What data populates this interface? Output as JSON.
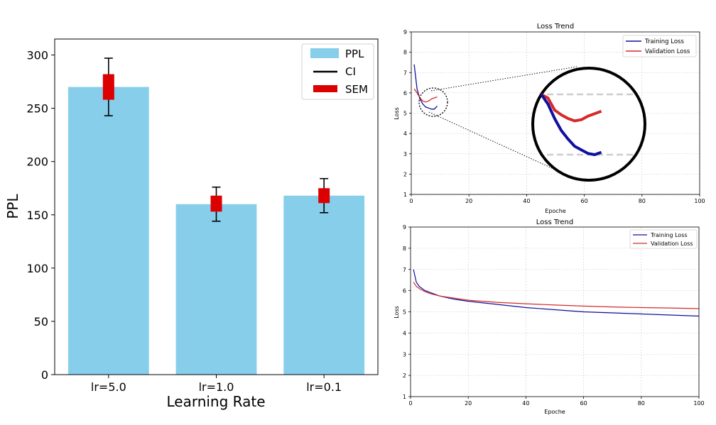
{
  "colors": {
    "ppl": "#87ceeb",
    "sem": "#dd0000",
    "ci": "#000000",
    "training": "#1010a0",
    "validation": "#d42a2a",
    "grid": "#c8c8c8",
    "dash": "#cccccc"
  },
  "chart_data": [
    {
      "type": "bar",
      "categories": [
        "lr=5.0",
        "lr=1.0",
        "lr=0.1"
      ],
      "series": [
        {
          "name": "PPL",
          "values": [
            270,
            160,
            168
          ]
        }
      ],
      "error_bars": {
        "CI": [
          [
            243,
            297
          ],
          [
            144,
            176
          ],
          [
            152,
            184
          ]
        ],
        "SEM": [
          [
            258,
            282
          ],
          [
            153,
            168
          ],
          [
            161,
            175
          ]
        ]
      },
      "legend": [
        "PPL",
        "CI",
        "SEM"
      ],
      "legend_position": "top-right",
      "xlabel": "Learning Rate",
      "ylabel": "PPL",
      "ylim": [
        0,
        315
      ],
      "yticks": [
        0,
        50,
        100,
        150,
        200,
        250,
        300
      ],
      "grid": false
    },
    {
      "type": "line",
      "title": "Loss Trend",
      "xlabel": "Epoche",
      "ylabel": "Loss",
      "xlim": [
        0,
        100
      ],
      "ylim": [
        1,
        9
      ],
      "xticks": [
        0,
        20,
        40,
        60,
        80,
        100
      ],
      "yticks": [
        1,
        2,
        3,
        4,
        5,
        6,
        7,
        8,
        9
      ],
      "grid": true,
      "legend_position": "top-right",
      "series": [
        {
          "name": "Training Loss",
          "x": [
            1,
            2,
            3,
            4,
            5,
            6,
            7,
            8,
            9
          ],
          "y": [
            7.4,
            6.2,
            5.7,
            5.45,
            5.3,
            5.25,
            5.2,
            5.2,
            5.35
          ]
        },
        {
          "name": "Validation Loss",
          "x": [
            1,
            2,
            3,
            4,
            5,
            6,
            7,
            8,
            9
          ],
          "y": [
            6.2,
            6.0,
            5.75,
            5.6,
            5.55,
            5.6,
            5.7,
            5.75,
            5.8
          ]
        }
      ],
      "zoom_inset": {
        "center": [
          6,
          5.5
        ],
        "training": [
          [
            1,
            6.0
          ],
          [
            2,
            5.6
          ],
          [
            3,
            5.0
          ],
          [
            4,
            4.5
          ],
          [
            5,
            4.15
          ],
          [
            6,
            3.85
          ],
          [
            7,
            3.7
          ],
          [
            8,
            3.55
          ],
          [
            9,
            3.5
          ],
          [
            10,
            3.6
          ]
        ],
        "validation": [
          [
            1,
            6.0
          ],
          [
            2,
            5.85
          ],
          [
            3,
            5.35
          ],
          [
            4,
            5.15
          ],
          [
            5,
            5.0
          ],
          [
            6,
            4.9
          ],
          [
            7,
            4.95
          ],
          [
            8,
            5.1
          ],
          [
            9,
            5.2
          ],
          [
            10,
            5.3
          ]
        ]
      }
    },
    {
      "type": "line",
      "title": "Loss Trend",
      "xlabel": "Epoche",
      "ylabel": "Loss",
      "xlim": [
        0,
        100
      ],
      "ylim": [
        1,
        9
      ],
      "xticks": [
        0,
        20,
        40,
        60,
        80,
        100
      ],
      "yticks": [
        1,
        2,
        3,
        4,
        5,
        6,
        7,
        8,
        9
      ],
      "grid": true,
      "legend_position": "top-right",
      "series": [
        {
          "name": "Training Loss",
          "x": [
            1,
            2,
            3,
            5,
            7,
            10,
            15,
            20,
            30,
            40,
            50,
            60,
            70,
            80,
            90,
            100
          ],
          "y": [
            7.0,
            6.4,
            6.2,
            6.0,
            5.9,
            5.75,
            5.6,
            5.5,
            5.35,
            5.2,
            5.1,
            5.0,
            4.95,
            4.9,
            4.85,
            4.8
          ]
        },
        {
          "name": "Validation Loss",
          "x": [
            1,
            2,
            3,
            5,
            7,
            10,
            15,
            20,
            30,
            40,
            50,
            60,
            70,
            80,
            90,
            100
          ],
          "y": [
            6.4,
            6.2,
            6.1,
            5.95,
            5.85,
            5.75,
            5.65,
            5.55,
            5.45,
            5.38,
            5.32,
            5.27,
            5.23,
            5.2,
            5.18,
            5.15
          ]
        }
      ]
    }
  ]
}
